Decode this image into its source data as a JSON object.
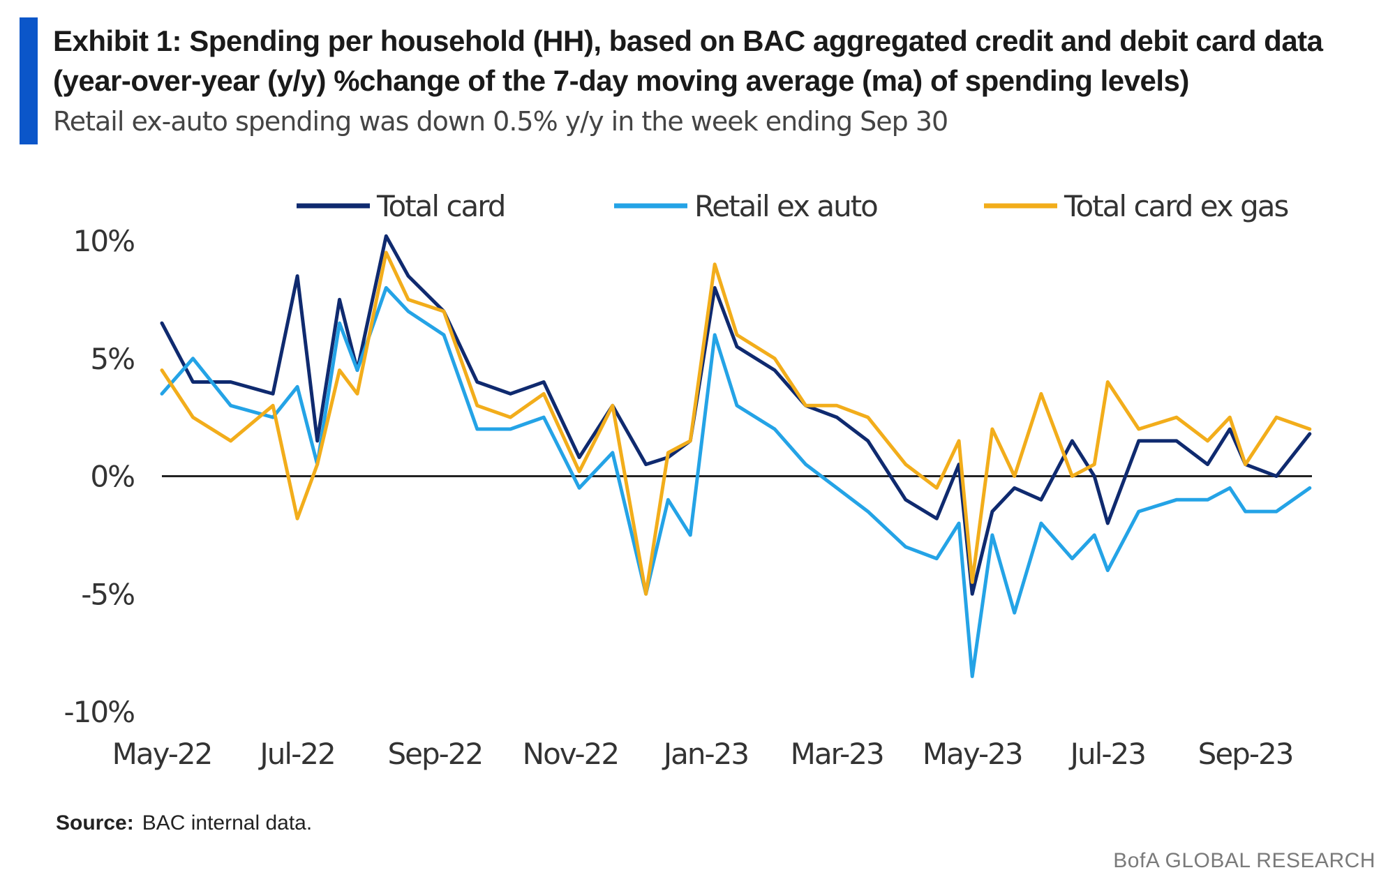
{
  "header": {
    "title": "Exhibit 1: Spending per household (HH), based on BAC aggregated credit and debit card data (year-over-year (y/y)  %change of the 7-day moving average (ma)  of spending levels)",
    "subtitle": "Retail ex-auto spending was down 0.5% y/y in the week ending Sep 30"
  },
  "footer": {
    "source_label": "Source:",
    "source_text": "BAC internal data.",
    "brand": "BofA GLOBAL RESEARCH"
  },
  "colors": {
    "accent": "#0b56c9",
    "total_card": "#0f2a6f",
    "retail_ex_auto": "#24a3e6",
    "total_card_ex_gas": "#f2ad1b",
    "zero_line": "#222222"
  },
  "chart_data": {
    "type": "line",
    "title": "",
    "xlabel": "",
    "ylabel": "",
    "x_tick_labels": [
      "May-22",
      "Jul-22",
      "Sep-22",
      "Nov-22",
      "Jan-23",
      "Mar-23",
      "May-23",
      "Jul-23",
      "Sep-23"
    ],
    "y_tick_labels": [
      "10%",
      "5%",
      "0%",
      "-5%",
      "-10%"
    ],
    "y_ticks": [
      10,
      5,
      0,
      -5,
      -10
    ],
    "ylim": [
      -10,
      10
    ],
    "xlim": [
      "2022-05-01",
      "2023-10-01"
    ],
    "legend_position": "top",
    "grid": false,
    "zero_line": true,
    "series": [
      {
        "name": "Total card",
        "x": [
          "2022-05-01",
          "2022-05-15",
          "2022-06-01",
          "2022-06-20",
          "2022-07-01",
          "2022-07-10",
          "2022-07-20",
          "2022-07-28",
          "2022-08-10",
          "2022-08-20",
          "2022-09-05",
          "2022-09-20",
          "2022-10-05",
          "2022-10-20",
          "2022-11-05",
          "2022-11-20",
          "2022-12-05",
          "2022-12-15",
          "2022-12-25",
          "2023-01-05",
          "2023-01-15",
          "2023-02-01",
          "2023-02-15",
          "2023-03-01",
          "2023-03-15",
          "2023-04-01",
          "2023-04-15",
          "2023-04-25",
          "2023-05-01",
          "2023-05-10",
          "2023-05-20",
          "2023-06-01",
          "2023-06-15",
          "2023-06-25",
          "2023-07-01",
          "2023-07-15",
          "2023-08-01",
          "2023-08-15",
          "2023-08-25",
          "2023-09-01",
          "2023-09-15",
          "2023-09-30"
        ],
        "values": [
          6.5,
          4.0,
          4.0,
          3.5,
          8.5,
          1.5,
          7.5,
          4.5,
          10.2,
          8.5,
          7.0,
          4.0,
          3.5,
          4.0,
          0.8,
          3.0,
          0.5,
          0.8,
          1.5,
          8.0,
          5.5,
          4.5,
          3.0,
          2.5,
          1.5,
          -1.0,
          -1.8,
          0.5,
          -5.0,
          -1.5,
          -0.5,
          -1.0,
          1.5,
          0.0,
          -2.0,
          1.5,
          1.5,
          0.5,
          2.0,
          0.5,
          0.0,
          1.8
        ]
      },
      {
        "name": "Retail ex auto",
        "x": [
          "2022-05-01",
          "2022-05-15",
          "2022-06-01",
          "2022-06-20",
          "2022-07-01",
          "2022-07-10",
          "2022-07-20",
          "2022-07-28",
          "2022-08-10",
          "2022-08-20",
          "2022-09-05",
          "2022-09-20",
          "2022-10-05",
          "2022-10-20",
          "2022-11-05",
          "2022-11-20",
          "2022-12-05",
          "2022-12-15",
          "2022-12-25",
          "2023-01-05",
          "2023-01-15",
          "2023-02-01",
          "2023-02-15",
          "2023-03-01",
          "2023-03-15",
          "2023-04-01",
          "2023-04-15",
          "2023-04-25",
          "2023-05-01",
          "2023-05-10",
          "2023-05-20",
          "2023-06-01",
          "2023-06-15",
          "2023-06-25",
          "2023-07-01",
          "2023-07-15",
          "2023-08-01",
          "2023-08-15",
          "2023-08-25",
          "2023-09-01",
          "2023-09-15",
          "2023-09-30"
        ],
        "values": [
          3.5,
          5.0,
          3.0,
          2.5,
          3.8,
          0.5,
          6.5,
          4.5,
          8.0,
          7.0,
          6.0,
          2.0,
          2.0,
          2.5,
          -0.5,
          1.0,
          -5.0,
          -1.0,
          -2.5,
          6.0,
          3.0,
          2.0,
          0.5,
          -0.5,
          -1.5,
          -3.0,
          -3.5,
          -2.0,
          -8.5,
          -2.5,
          -5.8,
          -2.0,
          -3.5,
          -2.5,
          -4.0,
          -1.5,
          -1.0,
          -1.0,
          -0.5,
          -1.5,
          -1.5,
          -0.5
        ]
      },
      {
        "name": "Total card ex gas",
        "x": [
          "2022-05-01",
          "2022-05-15",
          "2022-06-01",
          "2022-06-20",
          "2022-07-01",
          "2022-07-10",
          "2022-07-20",
          "2022-07-28",
          "2022-08-10",
          "2022-08-20",
          "2022-09-05",
          "2022-09-20",
          "2022-10-05",
          "2022-10-20",
          "2022-11-05",
          "2022-11-20",
          "2022-12-05",
          "2022-12-15",
          "2022-12-25",
          "2023-01-05",
          "2023-01-15",
          "2023-02-01",
          "2023-02-15",
          "2023-03-01",
          "2023-03-15",
          "2023-04-01",
          "2023-04-15",
          "2023-04-25",
          "2023-05-01",
          "2023-05-10",
          "2023-05-20",
          "2023-06-01",
          "2023-06-15",
          "2023-06-25",
          "2023-07-01",
          "2023-07-15",
          "2023-08-01",
          "2023-08-15",
          "2023-08-25",
          "2023-09-01",
          "2023-09-15",
          "2023-09-30"
        ],
        "values": [
          4.5,
          2.5,
          1.5,
          3.0,
          -1.8,
          0.5,
          4.5,
          3.5,
          9.5,
          7.5,
          7.0,
          3.0,
          2.5,
          3.5,
          0.2,
          3.0,
          -5.0,
          1.0,
          1.5,
          9.0,
          6.0,
          5.0,
          3.0,
          3.0,
          2.5,
          0.5,
          -0.5,
          1.5,
          -4.5,
          2.0,
          0.0,
          3.5,
          0.0,
          0.5,
          4.0,
          2.0,
          2.5,
          1.5,
          2.5,
          0.5,
          2.5,
          2.0
        ]
      }
    ]
  }
}
